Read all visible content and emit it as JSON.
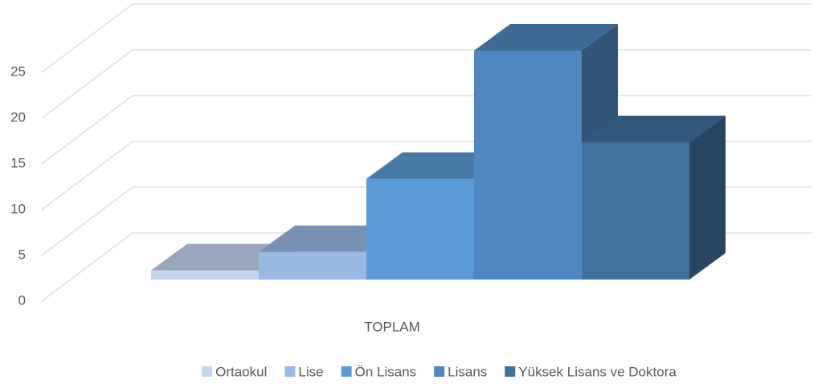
{
  "chart_data": {
    "type": "bar3d",
    "categories": [
      "TOPLAM"
    ],
    "series": [
      {
        "name": "Ortaokul",
        "color": "#c5d5ee",
        "values": [
          1
        ]
      },
      {
        "name": "Lise",
        "color": "#9ab9e3",
        "values": [
          3
        ]
      },
      {
        "name": "Ön Lisans",
        "color": "#5b9bd5",
        "values": [
          11
        ]
      },
      {
        "name": "Lisans",
        "color": "#4f88c0",
        "values": [
          25
        ]
      },
      {
        "name": "Yüksek Lisans ve Doktora",
        "color": "#41719c",
        "values": [
          15
        ]
      }
    ],
    "ylim": [
      0,
      25
    ],
    "yticks": [
      0,
      5,
      10,
      15,
      20,
      25
    ],
    "grid": true,
    "legend": "bottom"
  }
}
